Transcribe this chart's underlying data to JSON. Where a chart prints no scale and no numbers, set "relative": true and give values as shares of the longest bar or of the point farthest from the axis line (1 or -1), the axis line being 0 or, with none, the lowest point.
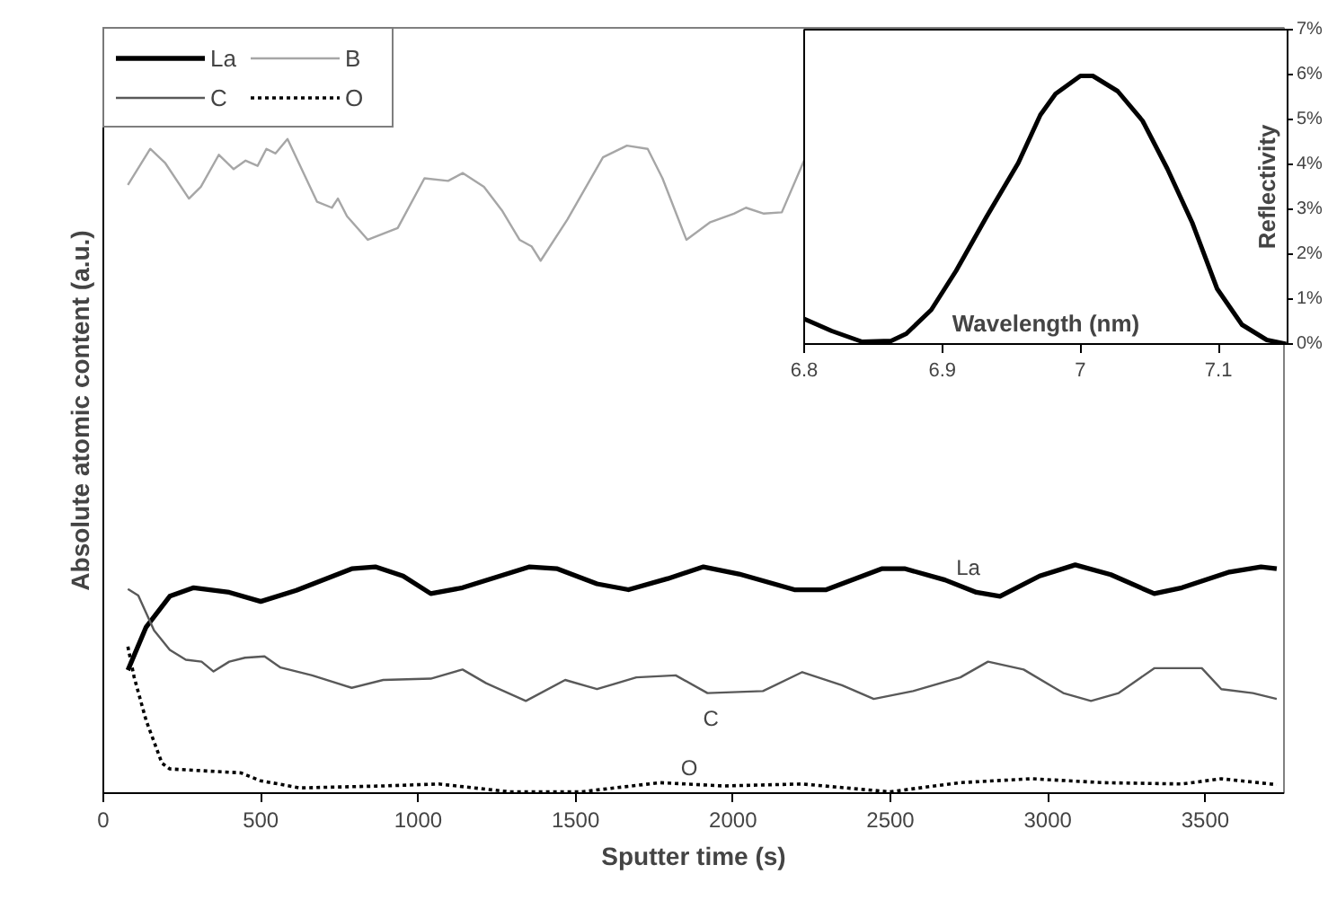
{
  "chart_data": [
    {
      "type": "line",
      "relative": true,
      "xlabel": "Sputter time (s)",
      "ylabel": "Absolute atomic content (a.u.)",
      "xlim": [
        0,
        3750
      ],
      "xticks": [
        0,
        500,
        1000,
        1500,
        2000,
        2500,
        3000,
        3500
      ],
      "grid": false,
      "legend": "top left",
      "marker": "none",
      "series": [
        {
          "name": "La",
          "color": "#000000",
          "line_style": "solid",
          "x": [
            78,
            136,
            211,
            287,
            400,
            500,
            613,
            789,
            864,
            952,
            1040,
            1141,
            1354,
            1442,
            1568,
            1668,
            1793,
            1906,
            2019,
            2195,
            2296,
            2472,
            2547,
            2673,
            2773,
            2848,
            2974,
            3087,
            3200,
            3338,
            3426,
            3577,
            3677,
            3727
          ],
          "values": [
            0.188,
            0.254,
            0.301,
            0.314,
            0.307,
            0.293,
            0.31,
            0.343,
            0.346,
            0.332,
            0.305,
            0.314,
            0.346,
            0.343,
            0.32,
            0.311,
            0.328,
            0.346,
            0.335,
            0.311,
            0.311,
            0.343,
            0.343,
            0.326,
            0.307,
            0.301,
            0.332,
            0.349,
            0.334,
            0.305,
            0.314,
            0.338,
            0.346,
            0.343
          ]
        },
        {
          "name": "B",
          "color": "#a6a6a6",
          "line_style": "solid",
          "x": [
            78,
            149,
            197,
            272,
            310,
            367,
            414,
            452,
            490,
            518,
            547,
            585,
            679,
            726,
            745,
            774,
            840,
            935,
            1020,
            1095,
            1142,
            1209,
            1266,
            1322,
            1360,
            1389,
            1474,
            1587,
            1663,
            1729,
            1776,
            1852,
            1928,
            2003,
            2041,
            2098,
            2155,
            2230
          ],
          "values": [
            0.93,
            0.985,
            0.963,
            0.909,
            0.927,
            0.976,
            0.954,
            0.967,
            0.959,
            0.985,
            0.978,
            1,
            0.904,
            0.895,
            0.909,
            0.882,
            0.846,
            0.864,
            0.94,
            0.936,
            0.948,
            0.927,
            0.891,
            0.846,
            0.836,
            0.814,
            0.877,
            0.972,
            0.99,
            0.985,
            0.94,
            0.846,
            0.873,
            0.886,
            0.895,
            0.886,
            0.888,
            0.972
          ]
        },
        {
          "name": "C",
          "color": "#595959",
          "line_style": "solid",
          "x": [
            78,
            111,
            161,
            211,
            262,
            312,
            350,
            400,
            450,
            512,
            563,
            663,
            789,
            889,
            1040,
            1141,
            1216,
            1342,
            1467,
            1568,
            1693,
            1818,
            1919,
            2095,
            2220,
            2346,
            2447,
            2572,
            2722,
            2810,
            2923,
            3049,
            3137,
            3225,
            3338,
            3489,
            3551,
            3651,
            3727
          ],
          "values": [
            0.312,
            0.302,
            0.249,
            0.219,
            0.204,
            0.201,
            0.186,
            0.201,
            0.207,
            0.209,
            0.192,
            0.18,
            0.161,
            0.173,
            0.175,
            0.189,
            0.168,
            0.141,
            0.173,
            0.159,
            0.177,
            0.18,
            0.153,
            0.156,
            0.185,
            0.165,
            0.144,
            0.156,
            0.177,
            0.201,
            0.189,
            0.153,
            0.141,
            0.153,
            0.191,
            0.191,
            0.159,
            0.153,
            0.144
          ]
        },
        {
          "name": "O",
          "color": "#000000",
          "line_style": "dotted",
          "x": [
            78,
            98,
            136,
            186,
            211,
            437,
            499,
            624,
            889,
            1065,
            1291,
            1517,
            1768,
            1969,
            2220,
            2497,
            2722,
            2948,
            3175,
            3426,
            3551,
            3727
          ],
          "values": [
            0.224,
            0.177,
            0.111,
            0.046,
            0.037,
            0.031,
            0.019,
            0.008,
            0.011,
            0.014,
            0.002,
            0.002,
            0.016,
            0.011,
            0.014,
            0.002,
            0.016,
            0.022,
            0.016,
            0.014,
            0.022,
            0.013
          ]
        }
      ],
      "annotations": [
        {
          "text": "La",
          "x": 2747,
          "y": 0.312
        },
        {
          "text": "C",
          "x": 1930,
          "y": 0.153
        },
        {
          "text": "O",
          "x": 1861,
          "y": 0.014
        }
      ]
    },
    {
      "type": "line",
      "xlabel": "Wavelength (nm)",
      "ylabel": "Reflectivity",
      "xlim": [
        6.8,
        7.15
      ],
      "xticks": [
        6.8,
        6.9,
        7,
        7.1
      ],
      "ylim": [
        0,
        7
      ],
      "yticks": [
        {
          "value": 0,
          "label": "0%"
        },
        {
          "value": 1,
          "label": "1%"
        },
        {
          "value": 2,
          "label": "2%"
        },
        {
          "value": 3,
          "label": "3%"
        },
        {
          "value": 4,
          "label": "4%"
        },
        {
          "value": 5,
          "label": "5%"
        },
        {
          "value": 6,
          "label": "6%"
        },
        {
          "value": 7,
          "label": "7%"
        }
      ],
      "grid": false,
      "legend": false,
      "marker": "none",
      "series": [
        {
          "color": "#000000",
          "line_style": "solid",
          "x": [
            6.8,
            6.82,
            6.842,
            6.863,
            6.874,
            6.892,
            6.91,
            6.932,
            6.955,
            6.971,
            6.982,
            7.0,
            7.009,
            7.027,
            7.045,
            7.063,
            7.081,
            7.099,
            7.117,
            7.135,
            7.149
          ],
          "values": [
            0.56,
            0.29,
            0.05,
            0.07,
            0.23,
            0.76,
            1.63,
            2.83,
            4.03,
            5.1,
            5.57,
            5.97,
            5.97,
            5.63,
            4.97,
            3.9,
            2.7,
            1.23,
            0.43,
            0.09,
            0.0
          ]
        }
      ]
    }
  ]
}
